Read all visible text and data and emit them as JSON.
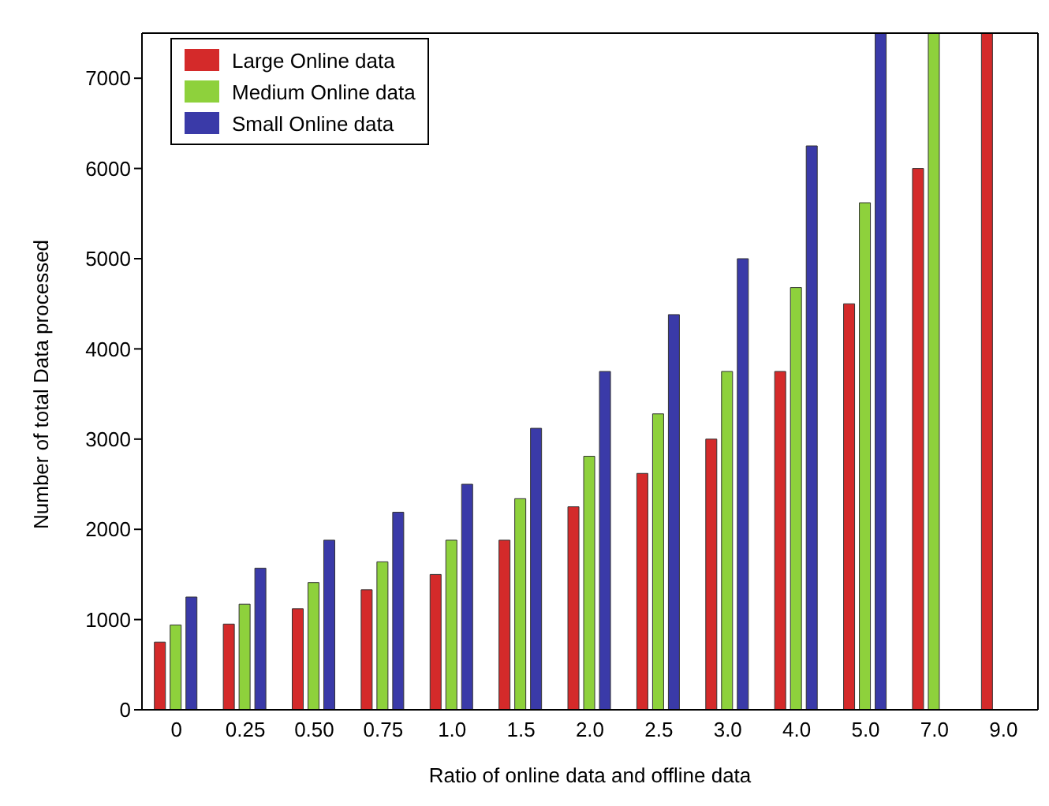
{
  "chart_data": {
    "type": "bar",
    "xlabel": "Ratio of online data and offline data",
    "ylabel": "Number of total Data processed",
    "categories": [
      "0",
      "0.25",
      "0.50",
      "0.75",
      "1.0",
      "1.5",
      "2.0",
      "2.5",
      "3.0",
      "4.0",
      "5.0",
      "7.0",
      "9.0"
    ],
    "series": [
      {
        "name": "Large Online data",
        "color": "#d42a2a",
        "values": [
          750,
          950,
          1120,
          1330,
          1500,
          1880,
          2250,
          2620,
          3000,
          3750,
          4500,
          6000,
          7500
        ]
      },
      {
        "name": "Medium Online data",
        "color": "#8ed13c",
        "values": [
          940,
          1170,
          1410,
          1640,
          1880,
          2340,
          2810,
          3280,
          3750,
          4680,
          5620,
          7500,
          null
        ]
      },
      {
        "name": "Small Online data",
        "color": "#3a3aa8",
        "values": [
          1250,
          1570,
          1880,
          2190,
          2500,
          3120,
          3750,
          4380,
          5000,
          6250,
          7500,
          null,
          null
        ]
      }
    ],
    "ylim": [
      0,
      7500
    ],
    "yticks": [
      0,
      1000,
      2000,
      3000,
      4000,
      5000,
      6000,
      7000
    ],
    "legend": "top left"
  }
}
